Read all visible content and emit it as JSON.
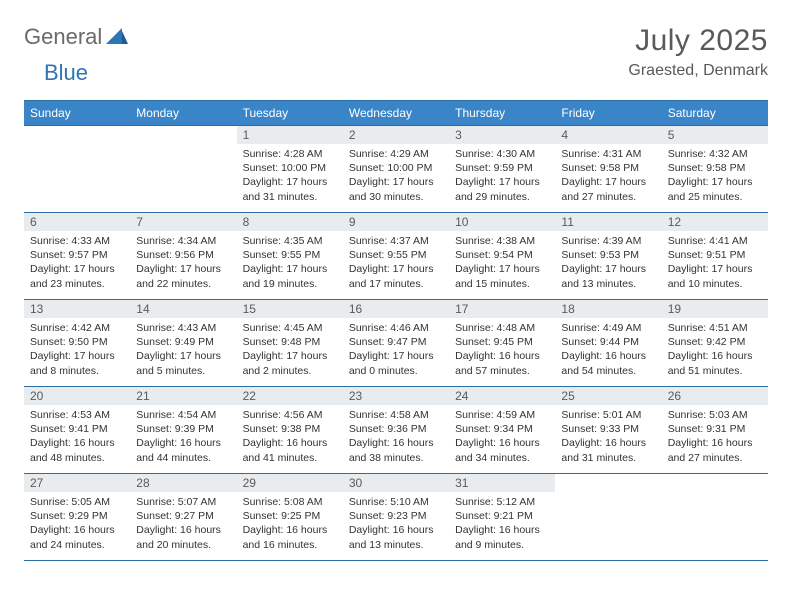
{
  "brand": {
    "part1": "General",
    "part2": "Blue"
  },
  "title": "July 2025",
  "location": "Graested, Denmark",
  "colors": {
    "header_bg": "#3a85c8",
    "header_border": "#2e6da4",
    "daynum_bg": "#e8ecef",
    "text": "#333333",
    "muted": "#5a5a5a",
    "brand_blue": "#2e75b6"
  },
  "dayNames": [
    "Sunday",
    "Monday",
    "Tuesday",
    "Wednesday",
    "Thursday",
    "Friday",
    "Saturday"
  ],
  "startWeekday": 2,
  "daysInMonth": 31,
  "days": {
    "1": {
      "sunrise": "4:28 AM",
      "sunset": "10:00 PM",
      "daylight": "17 hours and 31 minutes."
    },
    "2": {
      "sunrise": "4:29 AM",
      "sunset": "10:00 PM",
      "daylight": "17 hours and 30 minutes."
    },
    "3": {
      "sunrise": "4:30 AM",
      "sunset": "9:59 PM",
      "daylight": "17 hours and 29 minutes."
    },
    "4": {
      "sunrise": "4:31 AM",
      "sunset": "9:58 PM",
      "daylight": "17 hours and 27 minutes."
    },
    "5": {
      "sunrise": "4:32 AM",
      "sunset": "9:58 PM",
      "daylight": "17 hours and 25 minutes."
    },
    "6": {
      "sunrise": "4:33 AM",
      "sunset": "9:57 PM",
      "daylight": "17 hours and 23 minutes."
    },
    "7": {
      "sunrise": "4:34 AM",
      "sunset": "9:56 PM",
      "daylight": "17 hours and 22 minutes."
    },
    "8": {
      "sunrise": "4:35 AM",
      "sunset": "9:55 PM",
      "daylight": "17 hours and 19 minutes."
    },
    "9": {
      "sunrise": "4:37 AM",
      "sunset": "9:55 PM",
      "daylight": "17 hours and 17 minutes."
    },
    "10": {
      "sunrise": "4:38 AM",
      "sunset": "9:54 PM",
      "daylight": "17 hours and 15 minutes."
    },
    "11": {
      "sunrise": "4:39 AM",
      "sunset": "9:53 PM",
      "daylight": "17 hours and 13 minutes."
    },
    "12": {
      "sunrise": "4:41 AM",
      "sunset": "9:51 PM",
      "daylight": "17 hours and 10 minutes."
    },
    "13": {
      "sunrise": "4:42 AM",
      "sunset": "9:50 PM",
      "daylight": "17 hours and 8 minutes."
    },
    "14": {
      "sunrise": "4:43 AM",
      "sunset": "9:49 PM",
      "daylight": "17 hours and 5 minutes."
    },
    "15": {
      "sunrise": "4:45 AM",
      "sunset": "9:48 PM",
      "daylight": "17 hours and 2 minutes."
    },
    "16": {
      "sunrise": "4:46 AM",
      "sunset": "9:47 PM",
      "daylight": "17 hours and 0 minutes."
    },
    "17": {
      "sunrise": "4:48 AM",
      "sunset": "9:45 PM",
      "daylight": "16 hours and 57 minutes."
    },
    "18": {
      "sunrise": "4:49 AM",
      "sunset": "9:44 PM",
      "daylight": "16 hours and 54 minutes."
    },
    "19": {
      "sunrise": "4:51 AM",
      "sunset": "9:42 PM",
      "daylight": "16 hours and 51 minutes."
    },
    "20": {
      "sunrise": "4:53 AM",
      "sunset": "9:41 PM",
      "daylight": "16 hours and 48 minutes."
    },
    "21": {
      "sunrise": "4:54 AM",
      "sunset": "9:39 PM",
      "daylight": "16 hours and 44 minutes."
    },
    "22": {
      "sunrise": "4:56 AM",
      "sunset": "9:38 PM",
      "daylight": "16 hours and 41 minutes."
    },
    "23": {
      "sunrise": "4:58 AM",
      "sunset": "9:36 PM",
      "daylight": "16 hours and 38 minutes."
    },
    "24": {
      "sunrise": "4:59 AM",
      "sunset": "9:34 PM",
      "daylight": "16 hours and 34 minutes."
    },
    "25": {
      "sunrise": "5:01 AM",
      "sunset": "9:33 PM",
      "daylight": "16 hours and 31 minutes."
    },
    "26": {
      "sunrise": "5:03 AM",
      "sunset": "9:31 PM",
      "daylight": "16 hours and 27 minutes."
    },
    "27": {
      "sunrise": "5:05 AM",
      "sunset": "9:29 PM",
      "daylight": "16 hours and 24 minutes."
    },
    "28": {
      "sunrise": "5:07 AM",
      "sunset": "9:27 PM",
      "daylight": "16 hours and 20 minutes."
    },
    "29": {
      "sunrise": "5:08 AM",
      "sunset": "9:25 PM",
      "daylight": "16 hours and 16 minutes."
    },
    "30": {
      "sunrise": "5:10 AM",
      "sunset": "9:23 PM",
      "daylight": "16 hours and 13 minutes."
    },
    "31": {
      "sunrise": "5:12 AM",
      "sunset": "9:21 PM",
      "daylight": "16 hours and 9 minutes."
    }
  },
  "labels": {
    "sunrise": "Sunrise:",
    "sunset": "Sunset:",
    "daylight": "Daylight:"
  }
}
